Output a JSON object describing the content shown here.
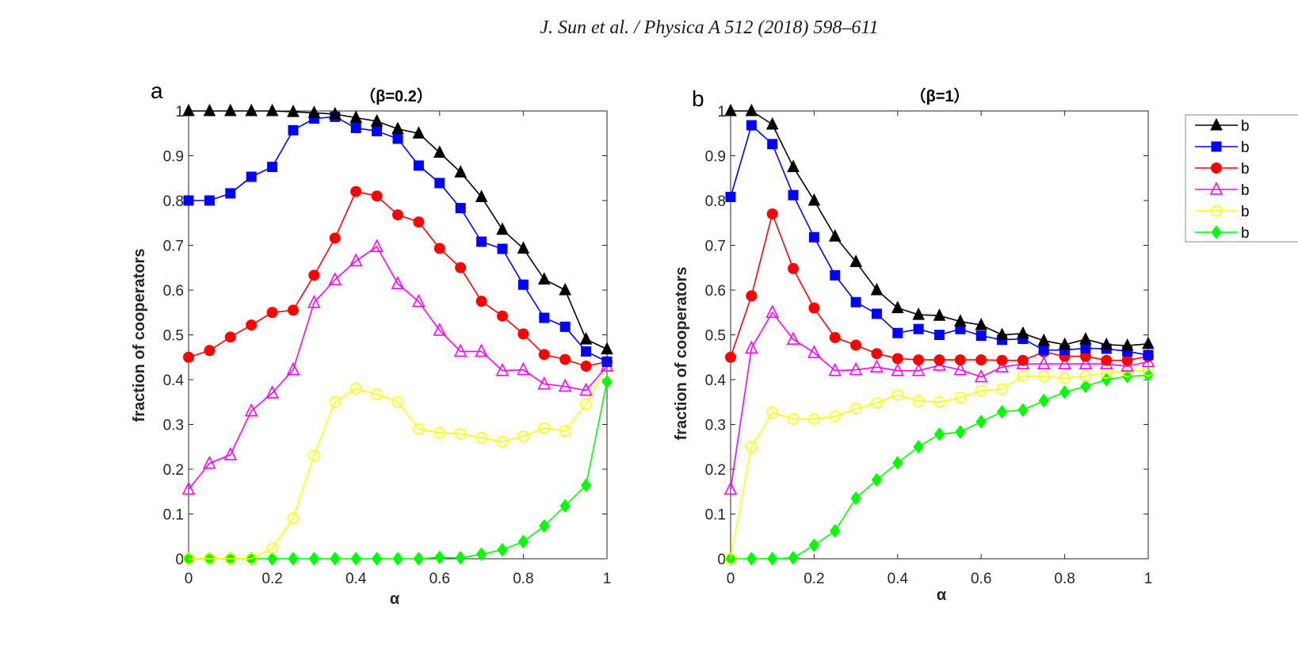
{
  "header": "J. Sun et al. / Physica A 512 (2018) 598–611",
  "legend": {
    "placement": "right-outside",
    "entries": [
      {
        "label": "b",
        "color": "#000000",
        "marker": "triangle-filled"
      },
      {
        "label": "b",
        "color": "#0000ff",
        "marker": "square-filled"
      },
      {
        "label": "b",
        "color": "#ff0000",
        "marker": "circle-filled"
      },
      {
        "label": "b",
        "color": "#ff00ff",
        "marker": "triangle-open"
      },
      {
        "label": "b",
        "color": "#ffff00",
        "marker": "circle-open"
      },
      {
        "label": "b",
        "color": "#00ff00",
        "marker": "diamond-filled"
      }
    ]
  },
  "chart_data": [
    {
      "type": "line",
      "panel": "a",
      "title": "（β=0.2）",
      "xlabel": "α",
      "ylabel": "fraction of cooperators",
      "xlim": [
        0,
        1
      ],
      "ylim": [
        0,
        1
      ],
      "xticks": [
        "0",
        "0.2",
        "0.4",
        "0.6",
        "0.8",
        "1"
      ],
      "yticks": [
        "0",
        "0.1",
        "0.2",
        "0.3",
        "0.4",
        "0.5",
        "0.6",
        "0.7",
        "0.8",
        "0.9",
        "1"
      ],
      "grid": false,
      "x": [
        0,
        0.05,
        0.1,
        0.15,
        0.2,
        0.25,
        0.3,
        0.35,
        0.4,
        0.45,
        0.5,
        0.55,
        0.6,
        0.65,
        0.7,
        0.75,
        0.8,
        0.85,
        0.9,
        0.95,
        1
      ],
      "series": [
        {
          "name": "b",
          "color": "#000000",
          "marker": "triangle-filled",
          "values": [
            1.0,
            1.0,
            1.0,
            1.0,
            1.0,
            0.998,
            0.996,
            0.993,
            0.985,
            0.977,
            0.96,
            0.95,
            0.907,
            0.863,
            0.808,
            0.735,
            0.693,
            0.624,
            0.6,
            0.49,
            0.468
          ]
        },
        {
          "name": "b",
          "color": "#0000ff",
          "marker": "square-filled",
          "values": [
            0.8,
            0.8,
            0.816,
            0.853,
            0.875,
            0.957,
            0.983,
            0.987,
            0.962,
            0.955,
            0.938,
            0.878,
            0.839,
            0.783,
            0.708,
            0.692,
            0.612,
            0.538,
            0.518,
            0.463,
            0.44
          ]
        },
        {
          "name": "b",
          "color": "#ff0000",
          "marker": "circle-filled",
          "values": [
            0.45,
            0.465,
            0.495,
            0.522,
            0.55,
            0.555,
            0.633,
            0.716,
            0.82,
            0.81,
            0.768,
            0.752,
            0.693,
            0.65,
            0.575,
            0.542,
            0.502,
            0.456,
            0.445,
            0.43,
            0.44
          ]
        },
        {
          "name": "b",
          "color": "#ff00ff",
          "marker": "triangle-open",
          "values": [
            0.155,
            0.213,
            0.232,
            0.33,
            0.37,
            0.422,
            0.572,
            0.623,
            0.665,
            0.697,
            0.614,
            0.574,
            0.51,
            0.463,
            0.463,
            0.42,
            0.422,
            0.39,
            0.385,
            0.376,
            0.43
          ]
        },
        {
          "name": "b",
          "color": "#ffff00",
          "marker": "circle-open",
          "values": [
            0.0,
            0.0,
            0.0,
            0.0,
            0.023,
            0.09,
            0.23,
            0.35,
            0.38,
            0.367,
            0.35,
            0.29,
            0.281,
            0.279,
            0.27,
            0.261,
            0.273,
            0.292,
            0.285,
            0.345,
            0.43
          ]
        },
        {
          "name": "b",
          "color": "#00ff00",
          "marker": "diamond-filled",
          "values": [
            0.0,
            0.0,
            0.0,
            0.0,
            0.0,
            0.0,
            0.0,
            0.0,
            0.0,
            0.0,
            0.0,
            0.0,
            0.003,
            0.002,
            0.01,
            0.02,
            0.038,
            0.073,
            0.118,
            0.164,
            0.395
          ]
        }
      ]
    },
    {
      "type": "line",
      "panel": "b",
      "title": "（β=1）",
      "xlabel": "α",
      "ylabel": "fraction of cooperators",
      "xlim": [
        0,
        1
      ],
      "ylim": [
        0,
        1
      ],
      "xticks": [
        "0",
        "0.2",
        "0.4",
        "0.6",
        "0.8",
        "1"
      ],
      "yticks": [
        "0",
        "0.1",
        "0.2",
        "0.3",
        "0.4",
        "0.5",
        "0.6",
        "0.7",
        "0.8",
        "0.9",
        "1"
      ],
      "grid": false,
      "x": [
        0,
        0.05,
        0.1,
        0.15,
        0.2,
        0.25,
        0.3,
        0.35,
        0.4,
        0.45,
        0.5,
        0.55,
        0.6,
        0.65,
        0.7,
        0.75,
        0.8,
        0.85,
        0.9,
        0.95,
        1
      ],
      "series": [
        {
          "name": "b",
          "color": "#000000",
          "marker": "triangle-filled",
          "values": [
            1.0,
            1.0,
            0.97,
            0.875,
            0.8,
            0.72,
            0.663,
            0.6,
            0.56,
            0.545,
            0.543,
            0.53,
            0.522,
            0.5,
            0.503,
            0.487,
            0.478,
            0.49,
            0.478,
            0.476,
            0.48
          ]
        },
        {
          "name": "b",
          "color": "#0000ff",
          "marker": "square-filled",
          "values": [
            0.808,
            0.968,
            0.926,
            0.812,
            0.718,
            0.633,
            0.573,
            0.547,
            0.504,
            0.513,
            0.5,
            0.513,
            0.498,
            0.489,
            0.491,
            0.466,
            0.466,
            0.47,
            0.469,
            0.463,
            0.455
          ]
        },
        {
          "name": "b",
          "color": "#ff0000",
          "marker": "circle-filled",
          "values": [
            0.45,
            0.587,
            0.77,
            0.648,
            0.56,
            0.494,
            0.477,
            0.458,
            0.447,
            0.444,
            0.444,
            0.444,
            0.444,
            0.443,
            0.443,
            0.462,
            0.452,
            0.452,
            0.443,
            0.443,
            0.452
          ]
        },
        {
          "name": "b",
          "color": "#ff00ff",
          "marker": "triangle-open",
          "values": [
            0.155,
            0.47,
            0.55,
            0.49,
            0.46,
            0.42,
            0.422,
            0.428,
            0.42,
            0.42,
            0.432,
            0.422,
            0.406,
            0.428,
            0.435,
            0.435,
            0.435,
            0.435,
            0.435,
            0.43,
            0.44
          ]
        },
        {
          "name": "b",
          "color": "#ffff00",
          "marker": "circle-open",
          "values": [
            0.0,
            0.25,
            0.326,
            0.312,
            0.312,
            0.318,
            0.335,
            0.348,
            0.366,
            0.352,
            0.35,
            0.36,
            0.375,
            0.379,
            0.408,
            0.407,
            0.403,
            0.408,
            0.415,
            0.418,
            0.42
          ]
        },
        {
          "name": "b",
          "color": "#00ff00",
          "marker": "diamond-filled",
          "values": [
            0.0,
            0.0,
            0.0,
            0.002,
            0.03,
            0.062,
            0.135,
            0.176,
            0.214,
            0.25,
            0.278,
            0.283,
            0.306,
            0.328,
            0.332,
            0.353,
            0.372,
            0.385,
            0.4,
            0.407,
            0.41
          ]
        }
      ]
    }
  ]
}
